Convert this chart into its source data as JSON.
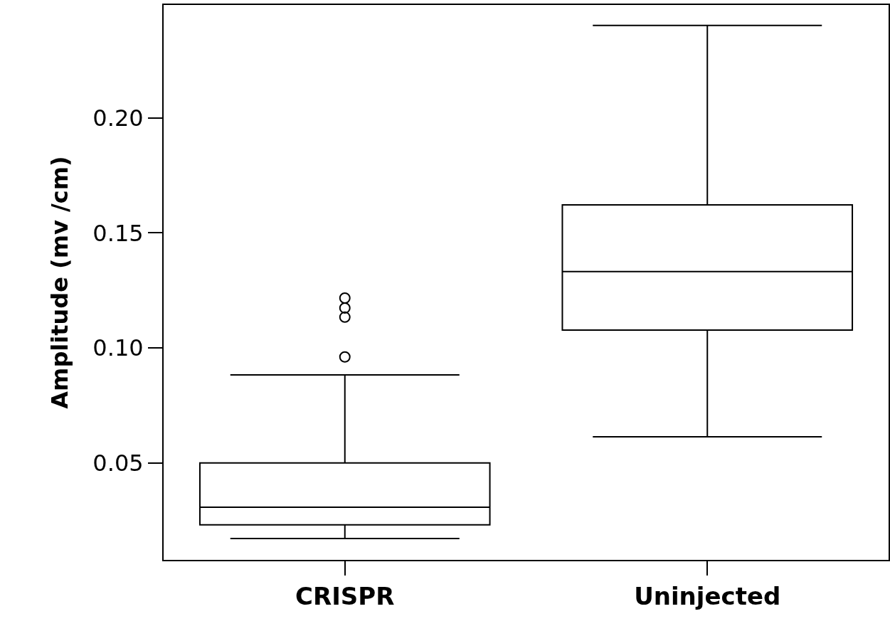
{
  "chart_data": {
    "type": "box",
    "ylabel": "Amplitude (mv /cm)",
    "categories": [
      "CRISPR",
      "Uninjected"
    ],
    "color": "#000000",
    "boxes": [
      {
        "low": 0.0172,
        "q1": 0.0231,
        "median": 0.0308,
        "q3": 0.05,
        "high": 0.0883,
        "outliers": [
          0.0961,
          0.1134,
          0.1174,
          0.1217
        ]
      },
      {
        "low": 0.0614,
        "q1": 0.1078,
        "median": 0.1332,
        "q3": 0.1622,
        "high": 0.2402
      }
    ],
    "ylim": [
      0.0079,
      0.2491
    ],
    "yticks": [
      {
        "value": 0.05,
        "label": "0.05"
      },
      {
        "value": 0.1,
        "label": "0.10"
      },
      {
        "value": 0.15,
        "label": "0.15"
      },
      {
        "value": 0.2,
        "label": "0.20"
      }
    ],
    "marker": "circle"
  }
}
